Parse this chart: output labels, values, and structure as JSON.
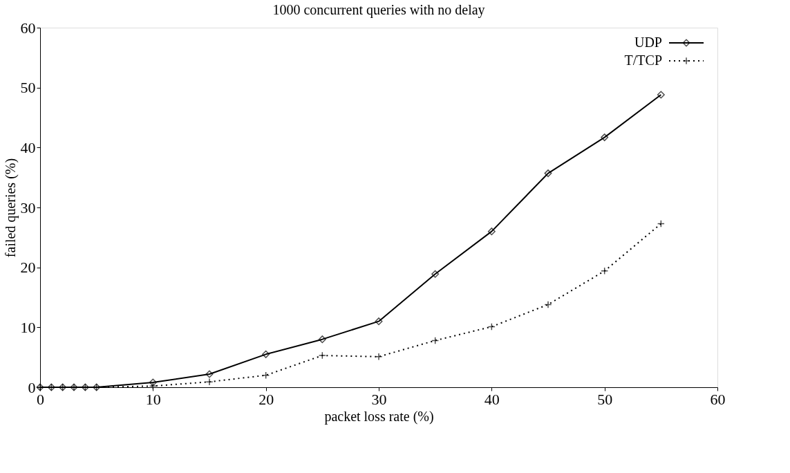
{
  "chart_data": {
    "type": "line",
    "title": "1000 concurrent queries with no delay",
    "xlabel": "packet loss rate (%)",
    "ylabel": "failed queries (%)",
    "x": [
      0,
      1,
      2,
      3,
      4,
      5,
      10,
      15,
      20,
      25,
      30,
      35,
      40,
      45,
      50,
      55
    ],
    "series": [
      {
        "name": "UDP",
        "color": "#000000",
        "marker": "diamond",
        "line_style": "solid",
        "values": [
          0,
          0,
          0,
          0,
          0,
          0,
          0.8,
          2.2,
          5.5,
          8.0,
          11.0,
          18.9,
          26.0,
          35.7,
          41.7,
          48.8
        ]
      },
      {
        "name": "T/TCP",
        "color": "#000000",
        "marker": "cross",
        "line_style": "dotted",
        "values": [
          0,
          0,
          0,
          0,
          0,
          0,
          0.2,
          0.9,
          2.0,
          5.3,
          5.1,
          7.8,
          10.1,
          13.8,
          19.4,
          27.3
        ]
      }
    ],
    "xlim": [
      0,
      60
    ],
    "xticks": [
      0,
      10,
      20,
      30,
      40,
      50,
      60
    ],
    "ylim": [
      0,
      60
    ],
    "yticks": [
      0,
      10,
      20,
      30,
      40,
      50,
      60
    ],
    "grid": false,
    "legend": "top right"
  }
}
